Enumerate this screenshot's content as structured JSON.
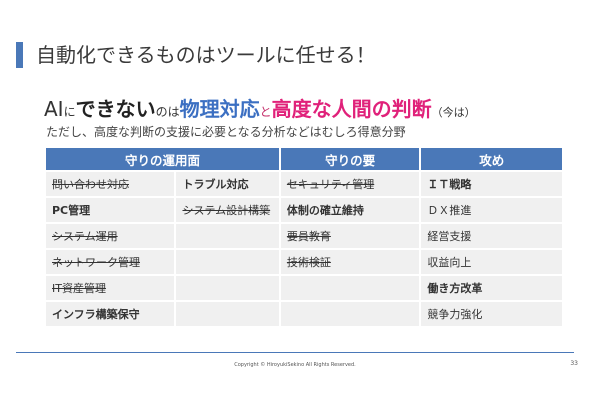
{
  "title": "自動化できるものはツールに任せる！",
  "headline": {
    "ai": "AI",
    "ni": "に",
    "dekinai": "できない",
    "noha": "のは",
    "physical": "物理対応",
    "to": "と",
    "high": "高度な人間の判断",
    "now": "（今は）"
  },
  "subtitle": "ただし、高度な判断の支援に必要となる分析などはむしろ得意分野",
  "table": {
    "headers": [
      "守りの運用面",
      "守りの要",
      "攻め"
    ],
    "rows": [
      [
        "問い合わせ対応",
        "トラブル対応",
        "セキュリティ管理",
        "ＩＴ戦略"
      ],
      [
        "PC管理",
        "システム設計構築",
        "体制の確立維持",
        "ＤＸ推進"
      ],
      [
        "システム運用",
        "",
        "要員教育",
        "経営支援"
      ],
      [
        "ネットワーク管理",
        "",
        "技術検証",
        "収益向上"
      ],
      [
        "IT資産管理",
        "",
        "",
        "働き方改革"
      ],
      [
        "インフラ構築保守",
        "",
        "",
        "競争力強化"
      ]
    ]
  },
  "footer": "Copyright © HiroyukiSekino All Rights Reserved.",
  "page_number": "33",
  "colors": {
    "accent": "#4a78b8",
    "pink": "#e0217a",
    "blue_text": "#3b6fc2"
  }
}
